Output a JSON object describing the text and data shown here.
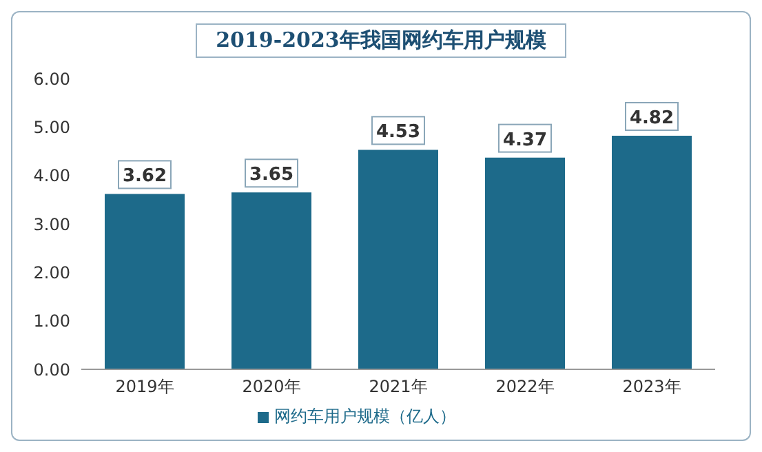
{
  "chart_data": {
    "type": "bar",
    "title": "2019-2023年我国网约车用户规模",
    "categories": [
      "2019年",
      "2020年",
      "2021年",
      "2022年",
      "2023年"
    ],
    "series": [
      {
        "name": "网约车用户规模（亿人）",
        "color": "#1d6a8a",
        "values": [
          3.62,
          3.65,
          4.53,
          4.37,
          4.82
        ]
      }
    ],
    "ylim": [
      0,
      6
    ],
    "yticks": [
      {
        "value": 0,
        "label": "0.00"
      },
      {
        "value": 1,
        "label": "1.00"
      },
      {
        "value": 2,
        "label": "2.00"
      },
      {
        "value": 3,
        "label": "3.00"
      },
      {
        "value": 4,
        "label": "4.00"
      },
      {
        "value": 5,
        "label": "5.00"
      },
      {
        "value": 6,
        "label": "6.00"
      }
    ],
    "data_labels": true,
    "legend": "bottom",
    "grid": false
  }
}
